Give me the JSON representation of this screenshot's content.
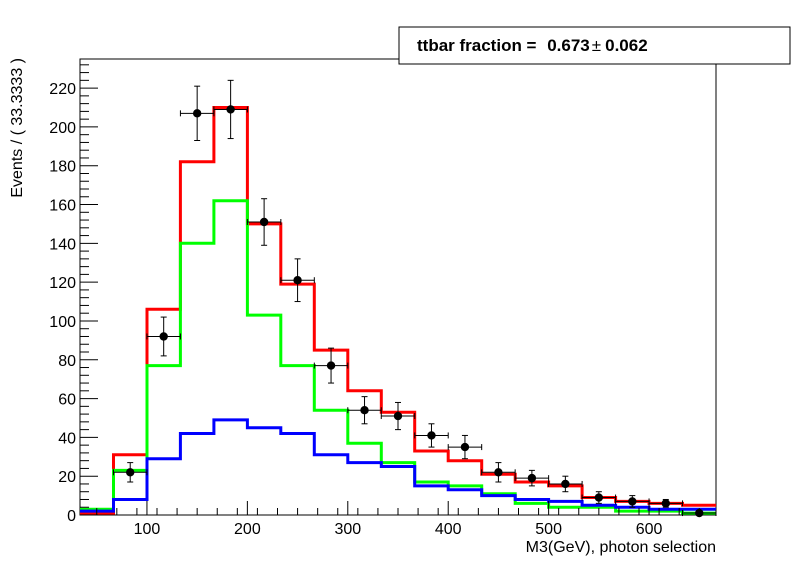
{
  "chart_data": {
    "type": "histogram",
    "xlabel": "M3(GeV), photon selection",
    "ylabel": "Events / ( 33.3333 )",
    "xlim": [
      33.33,
      666.67
    ],
    "ylim": [
      0,
      235
    ],
    "bin_edges": [
      33.33,
      66.67,
      100,
      133.33,
      166.67,
      200,
      233.33,
      266.67,
      300,
      333.33,
      366.67,
      400,
      433.33,
      466.67,
      500,
      533.33,
      566.67,
      600,
      633.33,
      666.67
    ],
    "x_ticks": [
      100,
      200,
      300,
      400,
      500,
      600
    ],
    "x_tick_labels": [
      "100",
      "200",
      "300",
      "400",
      "500",
      "600"
    ],
    "y_ticks": [
      0,
      20,
      40,
      60,
      80,
      100,
      120,
      140,
      160,
      180,
      200,
      220
    ],
    "y_tick_labels": [
      "0",
      "20",
      "40",
      "60",
      "80",
      "100",
      "120",
      "140",
      "160",
      "180",
      "200",
      "220"
    ],
    "series": [
      {
        "color": "#ff0000",
        "values": [
          1,
          31,
          106,
          182,
          210,
          150,
          119,
          85,
          64,
          53,
          33,
          28,
          21,
          17,
          15,
          9,
          7,
          6,
          5
        ]
      },
      {
        "color": "#00ff00",
        "values": [
          3,
          23,
          77,
          140,
          162,
          103,
          77,
          54,
          37,
          27,
          17,
          15,
          11,
          6,
          4,
          4,
          2,
          2,
          1
        ]
      },
      {
        "color": "#0000ff",
        "values": [
          2,
          8,
          29,
          42,
          49,
          45,
          42,
          31,
          27,
          25,
          15,
          13,
          10,
          8,
          7,
          5,
          4,
          3,
          3
        ]
      }
    ],
    "data_points": {
      "color": "#000000",
      "x": [
        83.33,
        116.67,
        150,
        183.33,
        216.67,
        250,
        283.33,
        316.67,
        350,
        383.33,
        416.67,
        450,
        483.33,
        516.67,
        550,
        583.33,
        616.67,
        650
      ],
      "y": [
        22,
        92,
        207,
        209,
        151,
        121,
        77,
        54,
        51,
        41,
        35,
        22,
        19,
        16,
        9,
        7,
        6,
        1
      ],
      "yerr": [
        5,
        10,
        14,
        15,
        12,
        11,
        9,
        7,
        7,
        6,
        6,
        5,
        4,
        4,
        3,
        3,
        2,
        1
      ]
    },
    "annotation": {
      "label": "ttbar fraction = ",
      "value": "0.673",
      "pm": "±",
      "error": "0.062"
    }
  }
}
